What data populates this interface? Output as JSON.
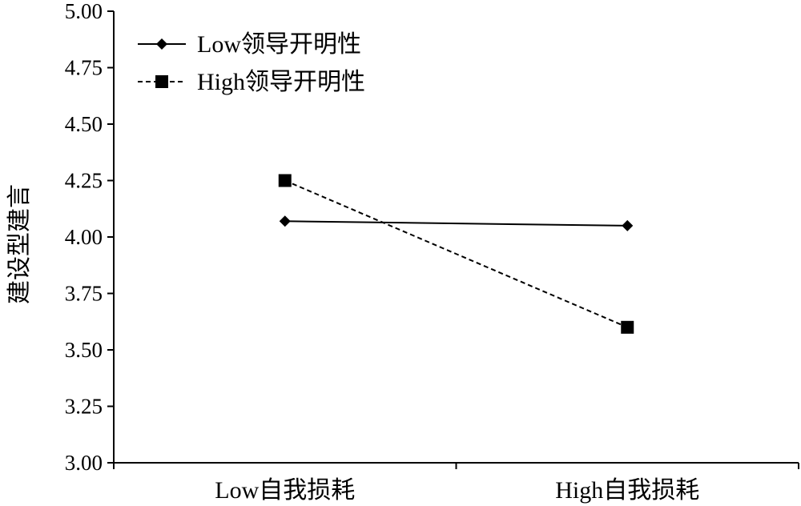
{
  "chart_data": {
    "type": "line",
    "categories": [
      "Low自我损耗",
      "High自我损耗"
    ],
    "ylabel": "建设型建言",
    "xlabel": "",
    "ylim": [
      3.0,
      5.0
    ],
    "yticks": [
      "3.00",
      "3.25",
      "3.50",
      "3.75",
      "4.00",
      "4.25",
      "4.50",
      "4.75",
      "5.00"
    ],
    "grid": false,
    "legend_placement": "top-left",
    "series": [
      {
        "name": "Low领导开明性",
        "values": [
          4.07,
          4.05
        ],
        "marker": "diamond",
        "line_style": "solid",
        "color": "#000000"
      },
      {
        "name": "High领导开明性",
        "values": [
          4.25,
          3.6
        ],
        "marker": "square",
        "line_style": "dashed",
        "color": "#000000"
      }
    ]
  }
}
